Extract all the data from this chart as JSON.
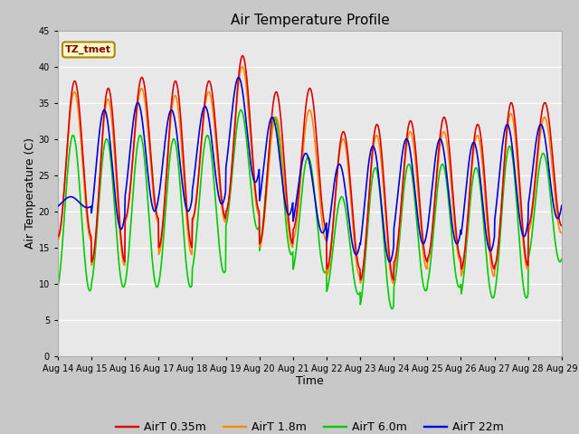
{
  "title": "Air Temperature Profile",
  "xlabel": "Time",
  "ylabel": "Air Temperature (C)",
  "annotation": "TZ_tmet",
  "ylim": [
    0,
    45
  ],
  "yticks": [
    0,
    5,
    10,
    15,
    20,
    25,
    30,
    35,
    40,
    45
  ],
  "x_labels": [
    "Aug 14",
    "Aug 15",
    "Aug 16",
    "Aug 17",
    "Aug 18",
    "Aug 19",
    "Aug 20",
    "Aug 21",
    "Aug 22",
    "Aug 23",
    "Aug 24",
    "Aug 25",
    "Aug 26",
    "Aug 27",
    "Aug 28",
    "Aug 29"
  ],
  "colors": {
    "AirT 0.35m": "#dd0000",
    "AirT 1.8m": "#ff8800",
    "AirT 6.0m": "#00cc00",
    "AirT 22m": "#0000dd"
  },
  "legend_labels": [
    "AirT 0.35m",
    "AirT 1.8m",
    "AirT 6.0m",
    "AirT 22m"
  ],
  "fig_bg_color": "#c8c8c8",
  "plot_bg_color": "#e8e8e8",
  "annotation_bg": "#ffffcc",
  "annotation_border": "#aa8800",
  "title_fontsize": 11,
  "axis_label_fontsize": 9,
  "tick_fontsize": 7,
  "legend_fontsize": 9,
  "line_width": 1.2,
  "max_035": [
    38.0,
    37.0,
    38.5,
    38.0,
    38.0,
    41.5,
    36.5,
    37.0,
    31.0,
    32.0,
    32.5,
    33.0,
    32.0,
    35.0,
    35.0
  ],
  "min_035": [
    16.5,
    13.0,
    19.0,
    15.0,
    19.0,
    20.0,
    15.5,
    17.5,
    12.0,
    10.5,
    13.0,
    13.5,
    12.0,
    12.5,
    18.0
  ],
  "max_18": [
    36.5,
    35.5,
    37.0,
    36.0,
    36.5,
    40.0,
    33.0,
    34.0,
    30.0,
    30.5,
    31.0,
    31.0,
    30.5,
    33.5,
    33.0
  ],
  "min_18": [
    16.0,
    12.5,
    18.5,
    14.0,
    18.5,
    19.5,
    15.0,
    16.0,
    11.0,
    10.0,
    12.0,
    13.0,
    11.0,
    12.0,
    17.0
  ],
  "max_60": [
    30.5,
    30.0,
    30.5,
    30.0,
    30.5,
    34.0,
    33.0,
    27.5,
    22.0,
    26.0,
    26.5,
    26.5,
    26.0,
    29.0,
    28.0
  ],
  "min_60": [
    9.0,
    9.5,
    9.5,
    9.5,
    11.5,
    17.5,
    14.0,
    11.5,
    8.5,
    6.5,
    9.0,
    9.5,
    8.0,
    8.0,
    13.0
  ],
  "max_22": [
    22.0,
    34.0,
    35.0,
    34.0,
    34.5,
    38.5,
    33.0,
    28.0,
    26.5,
    29.0,
    30.0,
    30.0,
    29.5,
    32.0,
    32.0
  ],
  "min_22": [
    20.5,
    17.5,
    20.0,
    20.0,
    21.0,
    24.0,
    19.5,
    17.0,
    14.0,
    13.0,
    15.5,
    15.5,
    14.5,
    16.5,
    19.0
  ],
  "phase_035": 0.0,
  "phase_18": 0.01,
  "phase_60": 0.05,
  "phase_22": 0.12
}
